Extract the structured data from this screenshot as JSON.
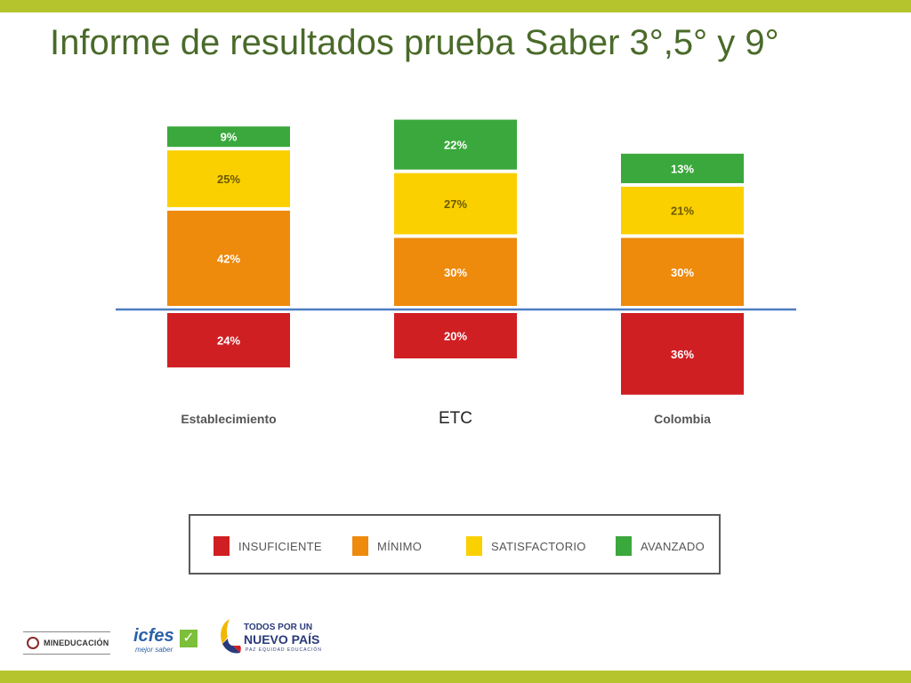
{
  "slide": {
    "title": "Informe de resultados prueba Saber 3°,5° y 9°"
  },
  "chart_data": {
    "type": "bar",
    "stacked": "diverging",
    "title": "",
    "xlabel": "",
    "ylabel": "",
    "categories": [
      "Establecimiento",
      "ETC",
      "Colombia"
    ],
    "series": [
      {
        "name": "INSUFICIENTE",
        "color": "#d01f23",
        "values": [
          24,
          20,
          36
        ],
        "labels": [
          "24%",
          "20%",
          "36%"
        ]
      },
      {
        "name": "MÍNIMO",
        "color": "#ee8a0c",
        "values": [
          42,
          30,
          30
        ],
        "labels": [
          "42%",
          "30%",
          "30%"
        ]
      },
      {
        "name": "SATISFACTORIO",
        "color": "#fbd000",
        "values": [
          25,
          27,
          21
        ],
        "labels": [
          "25%",
          "27%",
          "21%"
        ]
      },
      {
        "name": "AVANZADO",
        "color": "#3aa83c",
        "values": [
          9,
          22,
          13
        ],
        "labels": [
          "9%",
          "22%",
          "13%"
        ]
      }
    ],
    "baseline_color": "#4f7ec1",
    "grid": false,
    "legend_position": "bottom"
  },
  "logos": {
    "mineducacion": "MINEDUCACIÓN",
    "icfes": "icfes",
    "icfes_tagline": "mejor saber",
    "pais_line1": "TODOS POR UN",
    "pais_line2": "NUEVO PAÍS",
    "pais_line3": "PAZ  EQUIDAD  EDUCACIÓN"
  }
}
